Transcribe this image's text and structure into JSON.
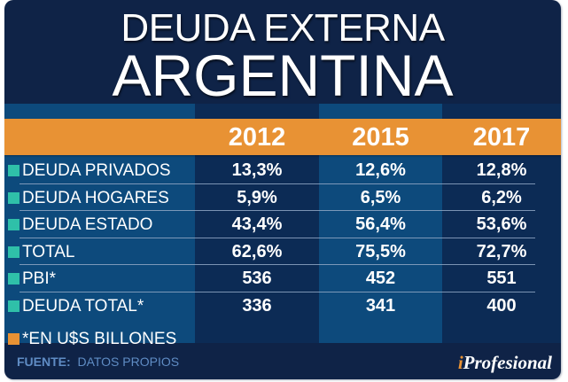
{
  "header": {
    "title_line1": "DEUDA EXTERNA",
    "title_line2": "ARGENTINA"
  },
  "colors": {
    "background": "#0f2347",
    "column_light": "#0d4a7c",
    "column_dark": "#0c2b55",
    "header_band": "#e89234",
    "bullet_teal": "#2fc0a9",
    "bullet_orange": "#e89234",
    "source_text": "#5f8cc4"
  },
  "table": {
    "years": [
      "2012",
      "2015",
      "2017"
    ],
    "rows": [
      {
        "label": "DEUDA PRIVADOS",
        "values": [
          "13,3%",
          "12,6%",
          "12,8%"
        ]
      },
      {
        "label": "DEUDA HOGARES",
        "values": [
          "5,9%",
          "6,5%",
          "6,2%"
        ]
      },
      {
        "label": "DEUDA ESTADO",
        "values": [
          "43,4%",
          "56,4%",
          "53,6%"
        ]
      },
      {
        "label": "TOTAL",
        "values": [
          "62,6%",
          "75,5%",
          "72,7%"
        ]
      },
      {
        "label": "PBI*",
        "values": [
          "536",
          "452",
          "551"
        ]
      },
      {
        "label": "DEUDA TOTAL*",
        "values": [
          "336",
          "341",
          "400"
        ]
      }
    ],
    "note": "*EN U$S BILLONES"
  },
  "footer": {
    "source_label": "FUENTE:",
    "source_value": "DATOS PROPIOS",
    "brand_i": "i",
    "brand_rest": "Profesional"
  }
}
